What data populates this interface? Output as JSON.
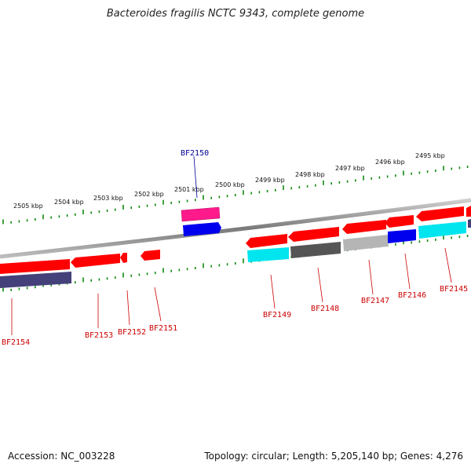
{
  "title": "Bacteroides fragilis NCTC 9343, complete genome",
  "footer": {
    "accession": "Accession: NC_003228",
    "summary": "Topology: circular; Length: 5,205,140 bp; Genes: 4,276"
  },
  "scale_labels": [
    "2505 kbp",
    "2504 kbp",
    "2503 kbp",
    "2502 kbp",
    "2501 kbp",
    "2500 kbp",
    "2499 kbp",
    "2498 kbp",
    "2497 kbp",
    "2496 kbp",
    "2495 kbp"
  ],
  "genes": [
    {
      "name": "BF2154",
      "color": "#cc0000"
    },
    {
      "name": "BF2153",
      "color": "#cc0000"
    },
    {
      "name": "BF2152",
      "color": "#cc0000"
    },
    {
      "name": "BF2151",
      "color": "#cc0000"
    },
    {
      "name": "BF2150",
      "color": "#000099"
    },
    {
      "name": "BF2149",
      "color": "#cc0000"
    },
    {
      "name": "BF2148",
      "color": "#cc0000"
    },
    {
      "name": "BF2147",
      "color": "#cc0000"
    },
    {
      "name": "BF2146",
      "color": "#cc0000"
    },
    {
      "name": "BF2145",
      "color": "#cc0000"
    }
  ],
  "colors": {
    "cds": "#ff0000",
    "product_magenta": "#ff1a8c",
    "product_blue": "#0000ee",
    "product_cyan": "#00e5ee",
    "product_dark_gray": "#555555",
    "product_light_gray": "#b5b5b5",
    "product_purple": "#44407a",
    "backbone": "#888888",
    "tick": "#118811"
  }
}
